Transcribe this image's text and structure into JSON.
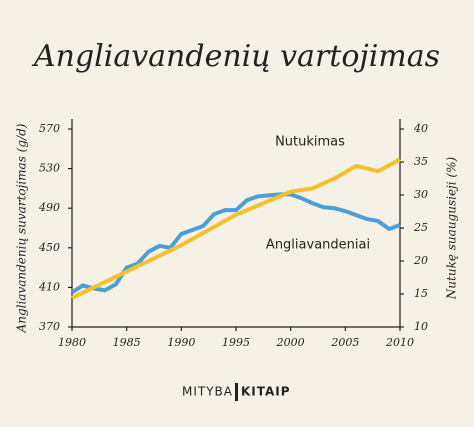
{
  "chart_data": {
    "type": "line",
    "title": "Angliavandenių vartojimas",
    "ylabel": "Angliavandenių suvartojimas (g/d)",
    "y2label": "Nutukę suaugusieji (%)",
    "xlim": [
      1980,
      2010
    ],
    "xticks": [
      1980,
      1985,
      1990,
      1995,
      2000,
      2005,
      2010
    ],
    "ylim": [
      370,
      570
    ],
    "yticks": [
      370,
      410,
      450,
      490,
      530,
      570
    ],
    "y2lim": [
      10,
      40
    ],
    "y2ticks": [
      10,
      15,
      20,
      25,
      30,
      35,
      40
    ],
    "series": [
      {
        "name": "Angliavandeniai",
        "color": "#4a9fd8",
        "axis": "y",
        "x": [
          1980,
          1981,
          1982,
          1983,
          1984,
          1985,
          1986,
          1987,
          1988,
          1989,
          1990,
          1991,
          1992,
          1993,
          1994,
          1995,
          1996,
          1997,
          1998,
          1999,
          2000,
          2001,
          2002,
          2003,
          2004,
          2005,
          2006,
          2007,
          2008,
          2009,
          2010
        ],
        "values": [
          405,
          412,
          409,
          407,
          413,
          430,
          434,
          446,
          452,
          450,
          464,
          468,
          472,
          484,
          488,
          488,
          498,
          502,
          503,
          504,
          504,
          500,
          495,
          491,
          490,
          487,
          483,
          479,
          477,
          469,
          473
        ]
      },
      {
        "name": "Nutukimas",
        "color": "#f5c02a",
        "axis": "y2",
        "x": [
          1980,
          1985,
          1990,
          1995,
          2000,
          2002,
          2004,
          2006,
          2008,
          2010
        ],
        "values": [
          14.4,
          18.4,
          22.4,
          27,
          30.5,
          31,
          32.5,
          34.4,
          33.6,
          35.4
        ]
      }
    ],
    "footer": {
      "left": "MITYBA",
      "right": "KITAIP"
    }
  }
}
